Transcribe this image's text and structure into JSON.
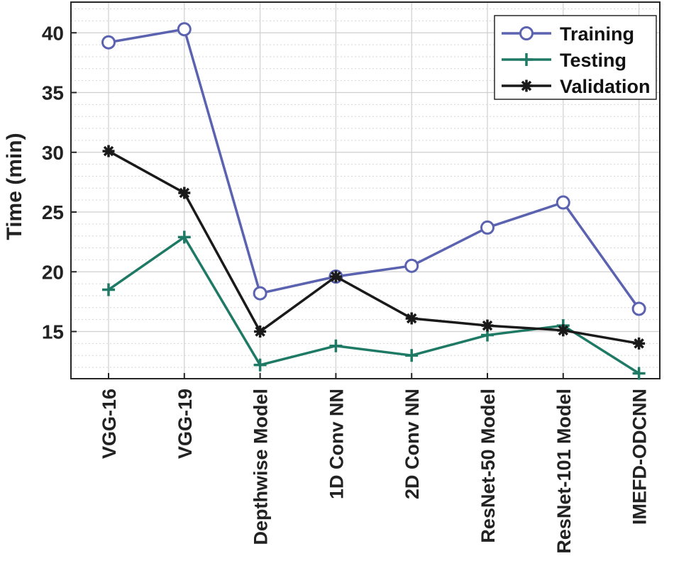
{
  "chart_data": {
    "type": "line",
    "title": "",
    "xlabel": "",
    "ylabel": "Time (min)",
    "categories": [
      "VGG-16",
      "VGG-19",
      "Depthwise Model",
      "1D Conv NN",
      "2D Conv NN",
      "ResNet-50 Model",
      "ResNet-101 Model",
      "IMEFD-ODCNN"
    ],
    "yticks": [
      15,
      20,
      25,
      30,
      35,
      40
    ],
    "ylim": [
      11.5,
      42.3
    ],
    "grid": true,
    "minor_grid": true,
    "legend_position": "top-right",
    "series": [
      {
        "name": "Training",
        "marker": "circle",
        "color": "#5b63b0",
        "values": [
          39.2,
          40.3,
          18.2,
          19.6,
          20.5,
          23.7,
          25.8,
          16.9
        ]
      },
      {
        "name": "Testing",
        "marker": "plus",
        "color": "#1f7a65",
        "values": [
          18.5,
          22.9,
          12.2,
          13.8,
          13.0,
          14.7,
          15.5,
          11.5
        ]
      },
      {
        "name": "Validation",
        "marker": "asterisk",
        "color": "#1a1a1a",
        "values": [
          30.1,
          26.6,
          15.0,
          19.6,
          16.1,
          15.5,
          15.1,
          14.0
        ]
      }
    ]
  }
}
